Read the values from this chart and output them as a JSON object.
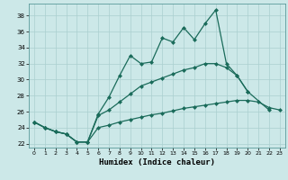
{
  "xlabel": "Humidex (Indice chaleur)",
  "bg_color": "#cce8e8",
  "grid_color": "#aacfcf",
  "line_color": "#1a6b5a",
  "xlim": [
    -0.5,
    23.5
  ],
  "ylim": [
    21.5,
    39.5
  ],
  "xticks": [
    0,
    1,
    2,
    3,
    4,
    5,
    6,
    7,
    8,
    9,
    10,
    11,
    12,
    13,
    14,
    15,
    16,
    17,
    18,
    19,
    20,
    21,
    22,
    23
  ],
  "yticks": [
    22,
    24,
    26,
    28,
    30,
    32,
    34,
    36,
    38
  ],
  "line1_x": [
    0,
    1,
    2,
    3,
    4,
    5,
    6,
    7,
    8,
    9,
    10,
    11,
    12,
    13,
    14,
    15,
    16,
    17,
    18,
    19,
    20
  ],
  "line1_y": [
    24.7,
    24.0,
    23.5,
    23.2,
    22.2,
    22.2,
    25.7,
    27.8,
    30.5,
    33.0,
    32.0,
    32.2,
    35.2,
    34.7,
    36.5,
    35.0,
    37.0,
    38.7,
    32.0,
    30.5,
    28.5
  ],
  "line2_x": [
    0,
    1,
    2,
    3,
    4,
    5,
    6,
    7,
    8,
    9,
    10,
    11,
    12,
    13,
    14,
    15,
    16,
    17,
    18,
    19,
    20,
    22
  ],
  "line2_y": [
    24.7,
    24.0,
    23.5,
    23.2,
    22.2,
    22.2,
    25.5,
    26.2,
    27.2,
    28.2,
    29.2,
    29.7,
    30.2,
    30.7,
    31.2,
    31.5,
    32.0,
    32.0,
    31.5,
    30.5,
    28.5,
    26.2
  ],
  "line3_x": [
    0,
    1,
    2,
    3,
    4,
    5,
    6,
    7,
    8,
    9,
    10,
    11,
    12,
    13,
    14,
    15,
    16,
    17,
    18,
    19,
    20,
    21,
    22,
    23
  ],
  "line3_y": [
    24.7,
    24.0,
    23.5,
    23.2,
    22.2,
    22.2,
    24.0,
    24.3,
    24.7,
    25.0,
    25.3,
    25.6,
    25.8,
    26.1,
    26.4,
    26.6,
    26.8,
    27.0,
    27.2,
    27.4,
    27.4,
    27.2,
    26.5,
    26.2
  ]
}
